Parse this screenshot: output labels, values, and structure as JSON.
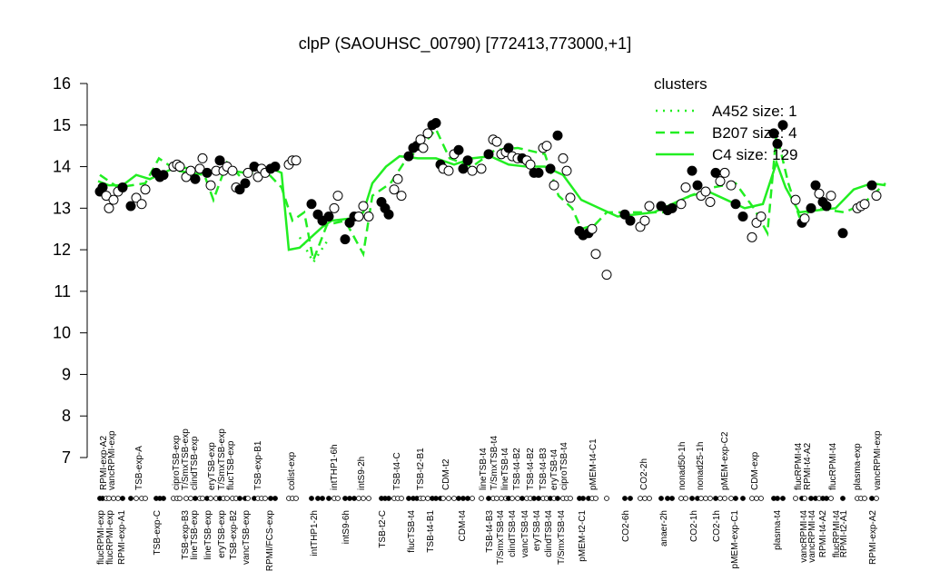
{
  "chart_data": {
    "type": "line",
    "title": "clpP (SAOUHSC_00790) [772413,773000,+1]",
    "legend_title": "clusters",
    "legend_color": "#22ee22",
    "legend": "top-right",
    "xlim": [
      0,
      875
    ],
    "ylim": [
      7,
      16
    ],
    "yticks": [
      7,
      8,
      9,
      10,
      11,
      12,
      13,
      14,
      15,
      16
    ],
    "series": [
      {
        "name": "A452 size: 1",
        "color": "#22ee22",
        "style": "dotted",
        "x": [
          230,
          245,
          260
        ],
        "values": [
          12.3,
          11.7,
          12.2
        ]
      },
      {
        "name": "B207 size: 4",
        "color": "#22ee22",
        "style": "dashed",
        "x": [
          10,
          30,
          60,
          75,
          95,
          125,
          135,
          150,
          165,
          190,
          210,
          222,
          235,
          245,
          260,
          280,
          300,
          310,
          330,
          345,
          365,
          380,
          395,
          420,
          445,
          470,
          500,
          515,
          530,
          540,
          555,
          568,
          590,
          630,
          660,
          685,
          710,
          730,
          745,
          755,
          768,
          780,
          800,
          830,
          850,
          875
        ],
        "values": [
          13.8,
          13.5,
          13.6,
          14.2,
          13.9,
          13.8,
          13.2,
          14.1,
          13.75,
          13.95,
          13.5,
          12.7,
          12.9,
          11.75,
          12.6,
          12.7,
          11.9,
          13.3,
          13.6,
          14.1,
          14.5,
          14.9,
          14.2,
          14.0,
          14.4,
          14.45,
          14.3,
          13.3,
          13.0,
          12.5,
          12.6,
          12.9,
          12.9,
          12.9,
          13.3,
          13.5,
          13.6,
          13.0,
          12.4,
          14.8,
          13.6,
          12.8,
          13.0,
          12.9,
          13.1,
          13.6
        ]
      },
      {
        "name": "C4 size: 129",
        "color": "#22ee22",
        "style": "solid",
        "x": [
          8,
          20,
          35,
          50,
          65,
          80,
          95,
          110,
          125,
          140,
          155,
          170,
          185,
          200,
          210,
          218,
          230,
          245,
          255,
          265,
          285,
          300,
          310,
          325,
          340,
          360,
          380,
          400,
          420,
          440,
          460,
          480,
          500,
          520,
          540,
          560,
          580,
          600,
          620,
          640,
          660,
          680,
          700,
          720,
          740,
          755,
          765,
          780,
          800,
          820,
          840,
          860,
          875
        ],
        "values": [
          13.65,
          13.55,
          13.55,
          13.8,
          13.7,
          13.85,
          14.0,
          13.95,
          13.85,
          13.95,
          13.9,
          13.85,
          13.95,
          13.95,
          13.85,
          12.0,
          12.05,
          12.35,
          12.55,
          12.7,
          12.75,
          12.9,
          13.6,
          14.0,
          14.25,
          14.2,
          14.2,
          14.05,
          14.2,
          14.25,
          14.05,
          14.0,
          14.0,
          13.8,
          13.2,
          13.0,
          12.8,
          12.85,
          12.9,
          13.1,
          13.3,
          13.4,
          13.2,
          13.0,
          13.1,
          14.1,
          13.5,
          12.9,
          12.95,
          13.0,
          13.45,
          13.6,
          13.55
        ]
      }
    ],
    "points": {
      "x": [
        10,
        13,
        17,
        20,
        25,
        30,
        35,
        44,
        50,
        56,
        60,
        72,
        76,
        80,
        91,
        95,
        98,
        105,
        110,
        115,
        120,
        123,
        128,
        132,
        138,
        142,
        146,
        150,
        156,
        160,
        164,
        170,
        173,
        180,
        184,
        188,
        192,
        198,
        203,
        218,
        222,
        226,
        243,
        250,
        255,
        262,
        268,
        272,
        280,
        285,
        290,
        295,
        300,
        306,
        320,
        324,
        328,
        334,
        338,
        342,
        350,
        355,
        359,
        363,
        366,
        371,
        376,
        380,
        385,
        388,
        394,
        400,
        405,
        410,
        415,
        420,
        430,
        438,
        443,
        447,
        452,
        457,
        460,
        464,
        470,
        475,
        480,
        484,
        488,
        493,
        498,
        502,
        506,
        510,
        514,
        520,
        524,
        528,
        538,
        542,
        548,
        552,
        556,
        568,
        588,
        594,
        605,
        610,
        615,
        628,
        635,
        640,
        650,
        655,
        662,
        668,
        672,
        677,
        682,
        688,
        693,
        698,
        705,
        710,
        718,
        728,
        733,
        738,
        752,
        756,
        762,
        776,
        783,
        786,
        793,
        798,
        802,
        806,
        810,
        815,
        828,
        844,
        848,
        852,
        860,
        865
      ],
      "values": [
        13.4,
        13.5,
        13.3,
        13.0,
        13.2,
        13.4,
        13.5,
        13.05,
        13.25,
        13.1,
        13.45,
        13.85,
        13.75,
        13.8,
        14.0,
        14.05,
        14.0,
        13.75,
        13.9,
        13.7,
        13.95,
        14.2,
        13.85,
        13.55,
        13.9,
        14.15,
        13.9,
        14.0,
        13.9,
        13.5,
        13.45,
        13.6,
        13.85,
        14.0,
        13.75,
        13.95,
        13.85,
        13.95,
        14.0,
        14.05,
        14.15,
        14.15,
        13.1,
        12.85,
        12.7,
        12.8,
        13.0,
        13.3,
        12.25,
        12.65,
        12.8,
        12.8,
        13.05,
        12.8,
        13.15,
        13.0,
        12.85,
        13.45,
        13.7,
        13.3,
        14.25,
        14.45,
        14.5,
        14.65,
        14.45,
        14.8,
        15.0,
        15.05,
        14.05,
        13.95,
        13.9,
        14.3,
        14.4,
        13.95,
        14.15,
        13.9,
        13.95,
        14.3,
        14.65,
        14.6,
        14.3,
        14.35,
        14.45,
        14.25,
        14.2,
        14.2,
        14.15,
        14.05,
        13.85,
        13.85,
        14.45,
        14.5,
        13.95,
        13.55,
        14.75,
        14.2,
        13.9,
        13.25,
        12.45,
        12.35,
        12.4,
        12.5,
        11.9,
        11.4,
        12.85,
        12.7,
        12.55,
        12.7,
        13.05,
        13.05,
        12.95,
        13.0,
        13.1,
        13.5,
        13.9,
        13.55,
        13.3,
        13.4,
        13.15,
        13.85,
        13.65,
        13.85,
        13.55,
        13.1,
        12.8,
        12.3,
        12.65,
        12.8,
        14.8,
        14.55,
        15.0,
        13.2,
        12.65,
        12.75,
        13.0,
        13.55,
        13.35,
        13.15,
        13.05,
        13.3,
        12.4,
        13.0,
        13.05,
        13.1,
        13.55,
        13.3
      ],
      "filled": [
        1,
        1,
        0,
        0,
        0,
        0,
        1,
        1,
        0,
        0,
        0,
        1,
        1,
        1,
        0,
        0,
        0,
        0,
        0,
        1,
        0,
        0,
        1,
        0,
        0,
        1,
        0,
        0,
        0,
        0,
        1,
        1,
        0,
        1,
        0,
        0,
        0,
        1,
        1,
        0,
        0,
        0,
        1,
        1,
        1,
        1,
        0,
        0,
        1,
        1,
        1,
        0,
        0,
        0,
        1,
        1,
        1,
        0,
        0,
        0,
        1,
        1,
        1,
        0,
        0,
        0,
        1,
        1,
        1,
        0,
        0,
        0,
        1,
        1,
        1,
        0,
        0,
        1,
        0,
        0,
        0,
        0,
        1,
        0,
        0,
        1,
        0,
        0,
        1,
        1,
        0,
        0,
        1,
        0,
        1,
        0,
        0,
        0,
        1,
        1,
        1,
        0,
        0,
        0,
        1,
        1,
        0,
        0,
        0,
        1,
        1,
        1,
        0,
        0,
        1,
        1,
        0,
        0,
        0,
        1,
        0,
        0,
        0,
        1,
        1,
        0,
        0,
        0,
        1,
        1,
        1,
        0,
        1,
        0,
        1,
        1,
        0,
        1,
        1,
        0,
        1,
        0,
        0,
        0,
        1,
        0
      ]
    },
    "x_labels_top": {
      "x": [
        13,
        22,
        52,
        93,
        103,
        113,
        132,
        143,
        153,
        183,
        220,
        267,
        297,
        336,
        362,
        390,
        431,
        443,
        455,
        468,
        483,
        497,
        509,
        520,
        552,
        608,
        650,
        670,
        697,
        730,
        778,
        788,
        816,
        843,
        865
      ],
      "labels": [
        "RPMI-exp-A2",
        "vancRPMI-exp",
        "TSB-exp-A",
        "ciproTSB-exp",
        "T/SmxTSB-exp",
        "clindTSB-exp",
        "eryTSB-exp",
        "T/SmxTSB-exp",
        "flucTSB-exp",
        "TSB-exp-B1",
        "colist-exp",
        "intTHP1-6h",
        "intS9-2h",
        "TSB-t4-C",
        "TSB-t2-B1",
        "CDM-t2",
        "lineTSB-t4",
        "T/SmxTSB-t4",
        "lineTSB-t4",
        "TSB-t4-B2",
        "TSB-t4-B2",
        "TSB-t4-B3",
        "eryTSB-t4",
        "ciproTSB-t4",
        "pMEM-t4-C1",
        "CO2-2h",
        "nonad50-1h",
        "nonad25-1h",
        "pMEM-exp-C2",
        "CDM-exp",
        "flucRPMI-t4",
        "RPMI-t4-A2",
        "flucRPMI-t4",
        "plasma-exp",
        "vancRPMI-exp"
      ]
    },
    "x_labels_bottom": {
      "x": [
        10,
        20,
        33,
        72,
        103,
        113,
        128,
        143,
        156,
        170,
        196,
        245,
        280,
        320,
        352,
        373,
        408,
        438,
        450,
        463,
        477,
        490,
        503,
        517,
        540,
        588,
        630,
        663,
        688,
        708,
        755,
        784,
        793,
        805,
        820,
        828,
        860
      ],
      "labels": [
        "flucRPMI-exp",
        "flucRPMI-exp",
        "RPMI-exp-A1",
        "TSB-exp-C",
        "TSB-exp-B3",
        "lineTSB-exp",
        "lineTSB-exp",
        "eryTSB-exp",
        "TSB-exp-B2",
        "vancTSB-exp",
        "RPMI/FCS-exp",
        "intTHP1-2h",
        "intS9-6h",
        "TSB-t2-C",
        "flucTSB-t4",
        "TSB-t4-B1",
        "CDM-t4",
        "TSB-t4-B3",
        "T/SmxTSB-t4",
        "clindTSB-t4",
        "vancTSB-t4",
        "eryTSB-t4",
        "clindTSB-t4",
        "T/SmxTSB-t4",
        "pMEM-t2-C1",
        "CO2-6h",
        "anaer-2h",
        "CO2-1h",
        "CO2-1h",
        "pMEM-exp-C1",
        "plasma-t4",
        "vancRPMI-t4",
        "vancRPMI-t4",
        "RPMI-t4-A2",
        "flucRPMI-t4",
        "RPMI-t2-A1",
        "RPMI-exp-A2"
      ]
    }
  }
}
